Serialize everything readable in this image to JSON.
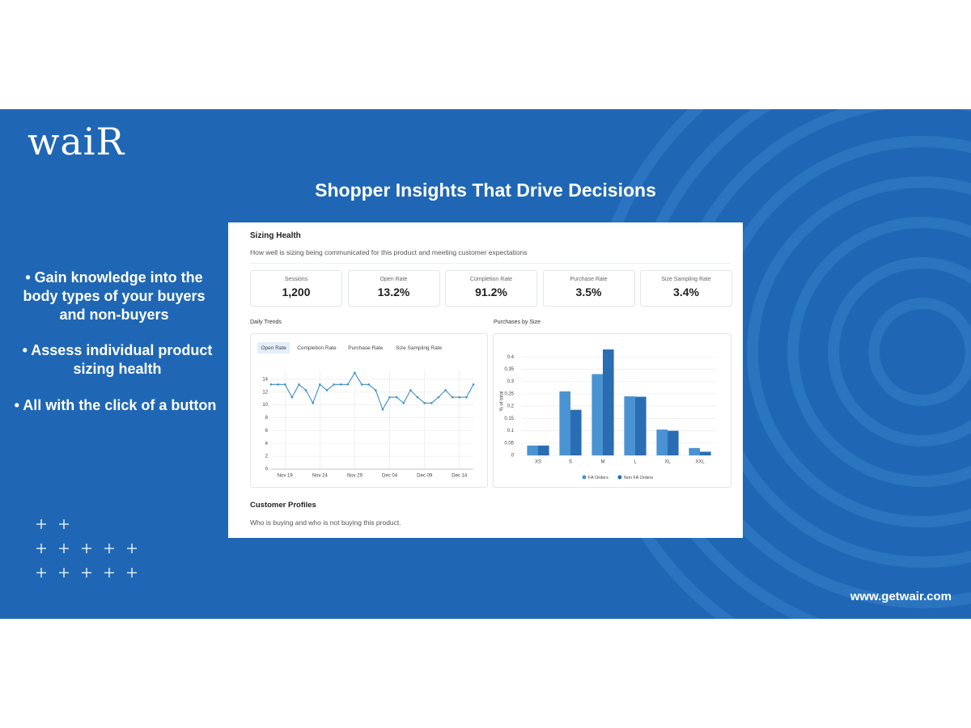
{
  "logo": "waiR",
  "headline": "Shopper Insights That Drive Decisions",
  "bullets": [
    "• Gain knowledge into the body types of your buyers and non-buyers",
    "• Assess individual product sizing health",
    "• All with the click of a button"
  ],
  "footer_url": "www.getwair.com",
  "dashboard": {
    "title": "Sizing Health",
    "subtitle": "How well is sizing being communicated for this product and meeting customer expectations",
    "kpis": [
      {
        "label": "Sessions",
        "value": "1,200"
      },
      {
        "label": "Open Rate",
        "value": "13.2%"
      },
      {
        "label": "Completion Rate",
        "value": "91.2%"
      },
      {
        "label": "Purchase Rate",
        "value": "3.5%"
      },
      {
        "label": "Size Sampling Rate",
        "value": "3.4%"
      }
    ],
    "section2_title": "Customer Profiles",
    "section2_subtitle": "Who is buying and who is not buying this product."
  },
  "chart_data": [
    {
      "type": "line",
      "title": "Daily Trends",
      "tabs": [
        "Open Rate",
        "Completion Rate",
        "Purchase Rate",
        "Size Sampling Rate"
      ],
      "active_tab": 0,
      "categories": [
        null,
        null,
        "Nov 19",
        null,
        null,
        null,
        null,
        "Nov 24",
        null,
        null,
        null,
        null,
        "Nov 29",
        null,
        null,
        null,
        null,
        "Dec 04",
        null,
        null,
        null,
        null,
        "Dec 09",
        null,
        null,
        null,
        null,
        "Dec 14",
        null,
        null
      ],
      "values": [
        13.2,
        13.2,
        13.2,
        11.2,
        13.2,
        12.3,
        10.3,
        13.2,
        12.3,
        13.2,
        13.2,
        13.2,
        15,
        13.2,
        13.2,
        12.3,
        9.3,
        11.2,
        11.2,
        10.3,
        12.3,
        11.2,
        10.3,
        10.3,
        11.2,
        12.3,
        11.2,
        11.2,
        11.2,
        13.2
      ],
      "color": "#3d8fd1",
      "ylim": [
        0,
        15.5
      ],
      "yticks": [
        0,
        2,
        4,
        6,
        8,
        10,
        12,
        14
      ],
      "grid": true
    },
    {
      "type": "bar",
      "title": "Purchases by Size",
      "ylabel": "% of total",
      "categories": [
        "XS",
        "S",
        "M",
        "L",
        "XL",
        "XXL"
      ],
      "series": [
        {
          "name": "FA Orders",
          "color": "#4a93d2",
          "values": [
            0.04,
            0.26,
            0.33,
            0.24,
            0.105,
            0.03
          ]
        },
        {
          "name": "Non FA Orders",
          "color": "#2a6db3",
          "values": [
            0.04,
            0.185,
            0.43,
            0.238,
            0.1,
            0.015
          ]
        }
      ],
      "ylim": [
        0,
        0.44
      ],
      "yticks": [
        0,
        0.05,
        0.1,
        0.15,
        0.2,
        0.25,
        0.3,
        0.35,
        0.4
      ],
      "grid": true,
      "legend": "bottom"
    }
  ]
}
